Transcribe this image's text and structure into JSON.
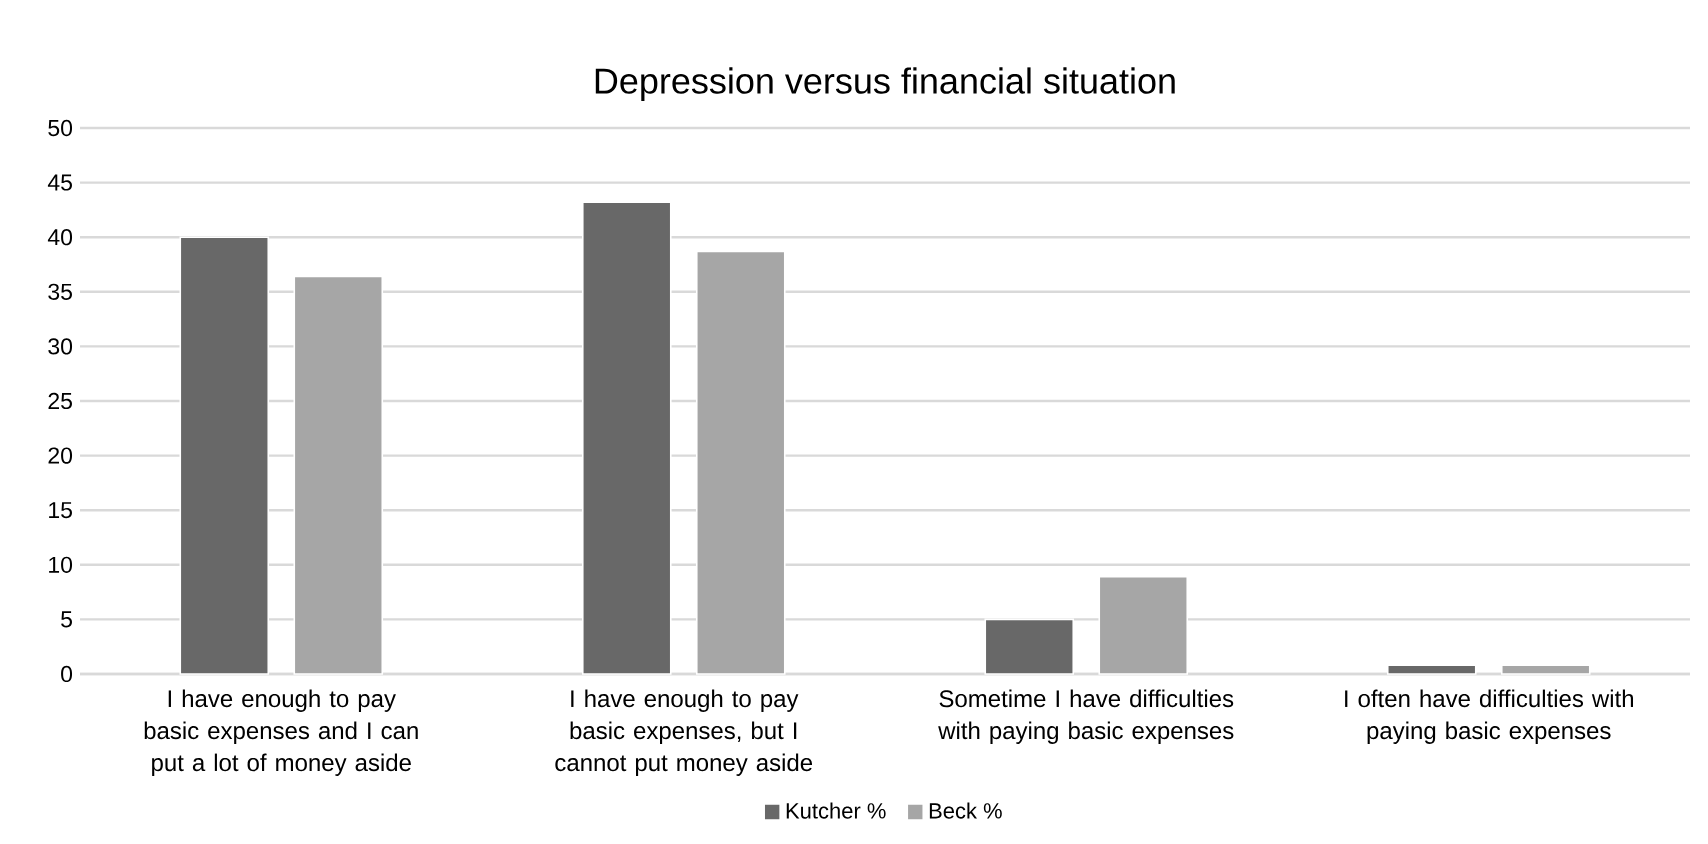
{
  "chart_data": {
    "type": "bar",
    "title": "Depression versus financial situation",
    "categories": [
      "I have enough to pay basic expenses and I can put a lot of money aside",
      "I have enough to pay basic expenses, but I cannot put money aside",
      "Sometime I have difficulties with paying basic expenses",
      "I often have difficulties with paying basic expenses"
    ],
    "series": [
      {
        "name": "Kutcher %",
        "color": "#686868",
        "values": [
          40,
          43.2,
          5,
          0.8
        ]
      },
      {
        "name": "Beck %",
        "color": "#a6a6a6",
        "values": [
          36.4,
          38.7,
          8.9,
          0.8
        ]
      }
    ],
    "ylim": [
      0,
      50
    ],
    "yticks": [
      0,
      5,
      10,
      15,
      20,
      25,
      30,
      35,
      40,
      45,
      50
    ],
    "grid": "y",
    "legend": "bottom"
  }
}
